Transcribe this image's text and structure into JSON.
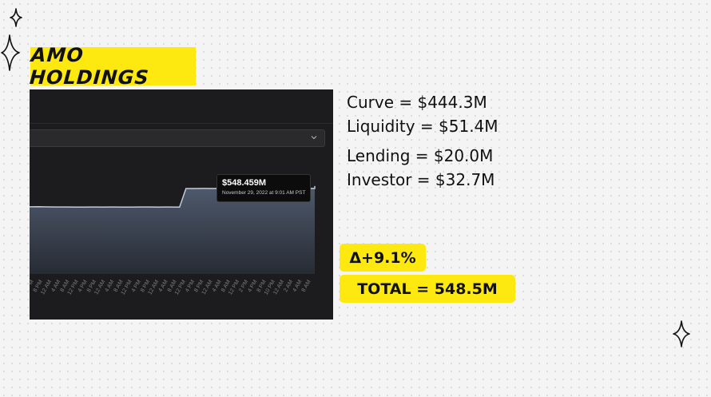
{
  "title": "AMO HOLDINGS",
  "breakdown": [
    {
      "label": "Curve",
      "value": "$444.3M",
      "text": "Curve = $444.3M"
    },
    {
      "label": "Liquidity",
      "value": "$51.4M",
      "text": "Liquidity = $51.4M"
    },
    {
      "label": "Lending",
      "value": "$20.0M",
      "text": "Lending = $20.0M"
    },
    {
      "label": "Investor",
      "value": "$32.7M",
      "text": "Investor = $32.7M"
    }
  ],
  "delta": "Δ+9.1%",
  "total": "TOTAL = 548.5M",
  "tooltip": {
    "value": "$548.459M",
    "date": "November 29, 2022 at 9:01 AM PST"
  },
  "chart_data": {
    "type": "area",
    "x": [
      "4 PM",
      "8 PM",
      "12 AM",
      "4 AM",
      "8 AM",
      "12 PM",
      "4 PM",
      "8 PM",
      "12 AM",
      "4 AM",
      "8 AM",
      "12 PM",
      "4 PM",
      "8 PM",
      "12 AM",
      "4 AM",
      "8 AM",
      "12 PM",
      "4 PM",
      "8 PM",
      "12 AM",
      "4 AM",
      "8 AM",
      "12 PM",
      "2 PM",
      "4 PM",
      "8 PM",
      "10 PM",
      "12 AM",
      "2 AM",
      "4 AM",
      "8 AM"
    ],
    "series": [
      {
        "values": [
          502.5,
          502.6,
          502.3,
          502.2,
          502.1,
          502.0,
          502.0,
          502.1,
          502.0,
          502.1,
          502.0,
          502.0,
          502.1,
          502.1,
          502.0,
          502.1,
          501.9,
          548.3,
          548.3,
          548.4,
          548.3,
          548.4,
          548.3,
          548.4,
          548.3,
          548.3,
          548.4,
          548.3,
          548.4,
          548.3,
          548.4,
          548.459
        ]
      }
    ],
    "ylim": [
      0,
      580
    ],
    "grid": false,
    "colors": {
      "line": "#c3cad6",
      "fill_top": "#4f5a6e",
      "fill_bottom": "#272b33",
      "panel": "#1c1c1e"
    }
  }
}
